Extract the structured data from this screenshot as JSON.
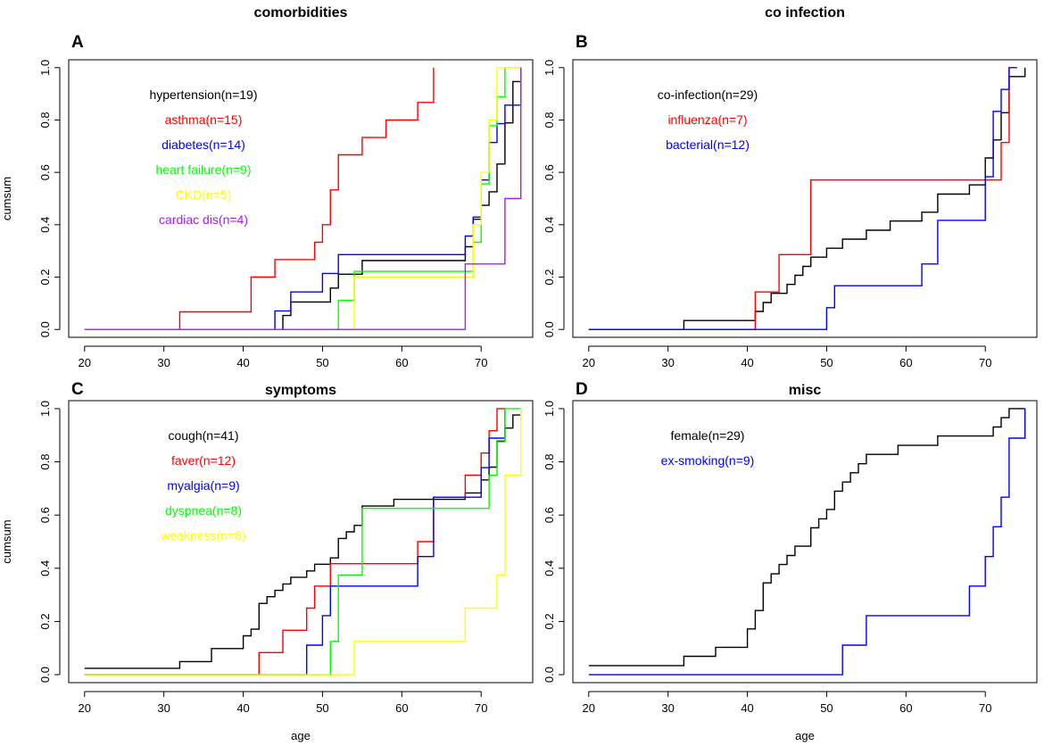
{
  "chart_data": [
    {
      "type": "line",
      "panel_letter": "A",
      "title": "comorbidities",
      "xlabel": "",
      "ylabel": "cumsum",
      "xlim": [
        18,
        76.5
      ],
      "ylim": [
        -0.03,
        1.03
      ],
      "x_ticks": [
        20,
        30,
        40,
        50,
        60,
        70
      ],
      "y_ticks": [
        "0.0",
        "0.2",
        "0.4",
        "0.6",
        "0.8",
        "1.0"
      ],
      "legend_position": "top-left",
      "series": [
        {
          "name": "hypertension(n=19)",
          "color": "#000000",
          "x": [
            20,
            44,
            45,
            46,
            50,
            51,
            52,
            54,
            55,
            56,
            64,
            68,
            69,
            70,
            71,
            72,
            73,
            74,
            75
          ],
          "y": [
            0,
            0,
            0.053,
            0.105,
            0.105,
            0.158,
            0.211,
            0.211,
            0.263,
            0.263,
            0.263,
            0.316,
            0.421,
            0.474,
            0.526,
            0.632,
            0.789,
            0.947,
            1.0
          ]
        },
        {
          "name": "asthma(n=15)",
          "color": "#ff0000",
          "x": [
            20,
            21,
            32,
            40,
            41,
            42,
            44,
            47,
            49,
            50,
            51,
            52,
            54,
            55,
            58,
            60,
            62,
            64
          ],
          "y": [
            0,
            0.0,
            0.067,
            0.067,
            0.2,
            0.2,
            0.267,
            0.267,
            0.333,
            0.4,
            0.533,
            0.667,
            0.667,
            0.733,
            0.8,
            0.8,
            0.867,
            1.0
          ]
        },
        {
          "name": "diabetes(n=14)",
          "color": "#0000ff",
          "x": [
            20,
            42,
            44,
            46,
            48,
            50,
            52,
            54,
            64,
            68,
            69,
            70,
            71,
            72,
            73,
            75
          ],
          "y": [
            0,
            0,
            0.071,
            0.143,
            0.143,
            0.214,
            0.286,
            0.286,
            0.286,
            0.357,
            0.429,
            0.571,
            0.714,
            0.786,
            0.857,
            1.0
          ]
        },
        {
          "name": "heart failure(n=9)",
          "color": "#00ff00",
          "x": [
            20,
            51,
            52,
            54,
            55,
            69,
            70,
            71,
            72,
            73,
            75
          ],
          "y": [
            0,
            0,
            0.111,
            0.222,
            0.222,
            0.333,
            0.556,
            0.778,
            0.889,
            1.0,
            1.0
          ]
        },
        {
          "name": "CKD(n=5)",
          "color": "#ffff00",
          "x": [
            20,
            53,
            54,
            55,
            68,
            69,
            70,
            71,
            72,
            75
          ],
          "y": [
            0,
            0,
            0.2,
            0.2,
            0.2,
            0.4,
            0.6,
            0.8,
            1.0,
            1.0
          ]
        },
        {
          "name": "cardiac dis(n=4)",
          "color": "#a020f0",
          "x": [
            20,
            64,
            68,
            72,
            73,
            75
          ],
          "y": [
            0,
            0,
            0.25,
            0.25,
            0.5,
            1.0
          ]
        }
      ]
    },
    {
      "type": "line",
      "panel_letter": "B",
      "title": "co infection",
      "xlabel": "",
      "ylabel": "",
      "xlim": [
        18,
        76.5
      ],
      "ylim": [
        -0.03,
        1.03
      ],
      "x_ticks": [
        20,
        30,
        40,
        50,
        60,
        70
      ],
      "y_ticks": [
        "0.0",
        "0.2",
        "0.4",
        "0.6",
        "0.8",
        "1.0"
      ],
      "legend_position": "top-left",
      "series": [
        {
          "name": "co-infection(n=29)",
          "color": "#000000",
          "x": [
            20,
            32,
            40,
            41,
            42,
            43,
            44,
            45,
            46,
            47,
            48,
            50,
            52,
            55,
            58,
            62,
            64,
            68,
            70,
            71,
            72,
            73,
            75
          ],
          "y": [
            0,
            0.034,
            0.034,
            0.069,
            0.103,
            0.138,
            0.138,
            0.172,
            0.207,
            0.241,
            0.276,
            0.31,
            0.345,
            0.379,
            0.414,
            0.448,
            0.517,
            0.552,
            0.655,
            0.724,
            0.828,
            0.966,
            1.0
          ]
        },
        {
          "name": "influenza(n=7)",
          "color": "#ff0000",
          "x": [
            20,
            40,
            41,
            42,
            44,
            46,
            48,
            71,
            72,
            73
          ],
          "y": [
            0,
            0,
            0.143,
            0.143,
            0.286,
            0.286,
            0.571,
            0.571,
            0.714,
            1.0
          ]
        },
        {
          "name": "bacterial(n=12)",
          "color": "#0000ff",
          "x": [
            20,
            48,
            50,
            51,
            58,
            62,
            64,
            68,
            70,
            71,
            72,
            73,
            74
          ],
          "y": [
            0,
            0,
            0.083,
            0.167,
            0.167,
            0.25,
            0.417,
            0.417,
            0.583,
            0.833,
            0.917,
            1.0,
            1.0
          ]
        }
      ]
    },
    {
      "type": "line",
      "panel_letter": "C",
      "title": "symptoms",
      "xlabel": "age",
      "ylabel": "cumsum",
      "xlim": [
        18,
        76.5
      ],
      "ylim": [
        -0.03,
        1.03
      ],
      "x_ticks": [
        20,
        30,
        40,
        50,
        60,
        70
      ],
      "y_ticks": [
        "0.0",
        "0.2",
        "0.4",
        "0.6",
        "0.8",
        "1.0"
      ],
      "legend_position": "top-left",
      "series": [
        {
          "name": "cough(n=41)",
          "color": "#000000",
          "x": [
            20,
            32,
            36,
            40,
            41,
            42,
            43,
            44,
            45,
            46,
            48,
            49,
            50,
            51,
            52,
            53,
            54,
            55,
            59,
            62,
            64,
            68,
            70,
            71,
            72,
            73,
            74,
            75
          ],
          "y": [
            0.024,
            0.049,
            0.098,
            0.146,
            0.171,
            0.268,
            0.293,
            0.317,
            0.341,
            0.366,
            0.39,
            0.415,
            0.415,
            0.439,
            0.512,
            0.537,
            0.561,
            0.634,
            0.659,
            0.659,
            0.659,
            0.683,
            0.732,
            0.78,
            0.878,
            0.927,
            0.976,
            1.0
          ]
        },
        {
          "name": "faver(n=12)",
          "color": "#ff0000",
          "x": [
            20,
            42,
            45,
            47,
            48,
            49,
            50,
            51,
            59,
            62,
            64,
            68,
            70,
            71,
            72,
            73
          ],
          "y": [
            0,
            0.083,
            0.167,
            0.167,
            0.25,
            0.333,
            0.333,
            0.417,
            0.417,
            0.5,
            0.667,
            0.75,
            0.833,
            0.917,
            1.0,
            1.0
          ]
        },
        {
          "name": "myalgia(n=9)",
          "color": "#0000ff",
          "x": [
            20,
            47,
            48,
            50,
            51,
            59,
            62,
            64,
            68,
            70,
            71,
            73
          ],
          "y": [
            0,
            0,
            0.111,
            0.222,
            0.333,
            0.333,
            0.444,
            0.667,
            0.667,
            0.778,
            0.889,
            1.0
          ]
        },
        {
          "name": "dyspnea(n=8)",
          "color": "#00ff00",
          "x": [
            20,
            50,
            51,
            52,
            55,
            70,
            71,
            72,
            73,
            75
          ],
          "y": [
            0,
            0,
            0.125,
            0.375,
            0.625,
            0.625,
            0.75,
            0.875,
            1.0,
            1.0
          ]
        },
        {
          "name": "weakness(n=8)",
          "color": "#ffff00",
          "x": [
            20,
            53,
            54,
            64,
            68,
            71,
            72,
            73,
            75
          ],
          "y": [
            0,
            0,
            0.125,
            0.125,
            0.25,
            0.25,
            0.375,
            0.75,
            1.0
          ]
        }
      ]
    },
    {
      "type": "line",
      "panel_letter": "D",
      "title": "misc",
      "xlabel": "age",
      "ylabel": "",
      "xlim": [
        18,
        76.5
      ],
      "ylim": [
        -0.03,
        1.03
      ],
      "x_ticks": [
        20,
        30,
        40,
        50,
        60,
        70
      ],
      "y_ticks": [
        "0.0",
        "0.2",
        "0.4",
        "0.6",
        "0.8",
        "1.0"
      ],
      "legend_position": "top-left",
      "series": [
        {
          "name": "female(n=29)",
          "color": "#000000",
          "x": [
            20,
            32,
            36,
            40,
            41,
            42,
            43,
            44,
            45,
            46,
            48,
            49,
            50,
            51,
            52,
            53,
            54,
            55,
            59,
            62,
            64,
            68,
            70,
            71,
            72,
            73,
            75
          ],
          "y": [
            0.034,
            0.069,
            0.103,
            0.172,
            0.241,
            0.345,
            0.379,
            0.414,
            0.448,
            0.483,
            0.552,
            0.586,
            0.621,
            0.69,
            0.724,
            0.759,
            0.793,
            0.828,
            0.862,
            0.862,
            0.897,
            0.897,
            0.897,
            0.931,
            0.966,
            1.0,
            1.0
          ]
        },
        {
          "name": "ex-smoking(n=9)",
          "color": "#0000ff",
          "x": [
            20,
            51,
            52,
            55,
            64,
            68,
            69,
            70,
            71,
            72,
            73,
            74,
            75
          ],
          "y": [
            0,
            0,
            0.111,
            0.222,
            0.222,
            0.333,
            0.333,
            0.444,
            0.556,
            0.667,
            0.889,
            0.889,
            1.0
          ]
        }
      ]
    }
  ]
}
